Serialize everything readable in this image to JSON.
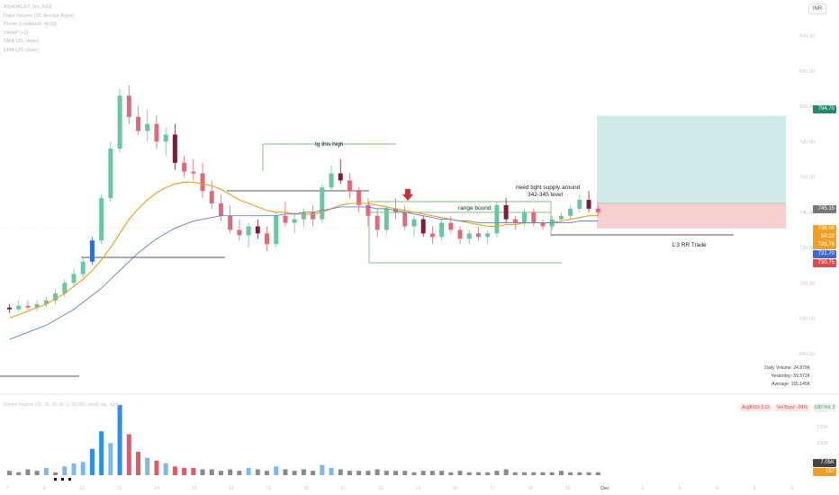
{
  "legend": {
    "symbol": "ASHOKLEY, 5m, NSE",
    "lines": [
      "Daily Volume (20, Anchor Right)",
      "Pivots (Lookback, 4x10)",
      "VWAP (+1)",
      "SMA (20, close)",
      "EMA (20, close)"
    ]
  },
  "currency": "INR",
  "volume_legend": "Simple Volume (20, 20, 20, 50, 0, 50,000, small, top, right)",
  "badges": {
    "b1": "AvgBVol: 0 Cr",
    "b2": "Vol Buzz: -84%",
    "b3": "U/D Vol: 2"
  },
  "volstats": {
    "daily": "Daily Volume: 24.879K",
    "yesterday": "Yesterday: 59.571K",
    "average": "Average: 155.145K"
  },
  "annotations": {
    "high": "tg this high",
    "supply1": "need tight supply around",
    "supply2": "342-345 level",
    "range": "range bound",
    "rr": "1:3  RR Trade"
  },
  "price_axis_ticks": [
    "840.00",
    "820.00",
    "800.00",
    "780.00",
    "760.00",
    "740.00",
    "720.00",
    "700.00",
    "680.00",
    "660.00"
  ],
  "price_tags": [
    {
      "label": "794.70",
      "color": "#1f8a70"
    },
    {
      "label": "745.15",
      "color": "#777777"
    },
    {
      "label": "736.00",
      "color": "#f0a020"
    },
    {
      "label": "50:22",
      "color": "#f0a020"
    },
    {
      "label": "735.76",
      "color": "#f0a020"
    },
    {
      "label": "731.70",
      "color": "#3a6ad0"
    },
    {
      "label": "730.75",
      "color": "#e04a4a"
    }
  ],
  "volume_tags": [
    {
      "label": "7.05K",
      "color": "#444444"
    },
    {
      "label": "157",
      "color": "#f0a020"
    }
  ],
  "x_ticks": [
    "7",
    "9",
    "12",
    "13",
    "14",
    "15",
    "16",
    "19",
    "20",
    "21",
    "22",
    "23",
    "26",
    "27",
    "28",
    "29",
    "Dec",
    "3",
    "4",
    "5",
    "6",
    "9"
  ],
  "chart_data": {
    "type": "candlestick",
    "ylim": [
      640,
      850
    ],
    "candles": [
      [
        686,
        688,
        683,
        685
      ],
      [
        685,
        690,
        684,
        687
      ],
      [
        687,
        690,
        685,
        686
      ],
      [
        686,
        690,
        684,
        688
      ],
      [
        688,
        692,
        686,
        690
      ],
      [
        690,
        696,
        688,
        694
      ],
      [
        694,
        702,
        692,
        700
      ],
      [
        700,
        708,
        698,
        705
      ],
      [
        705,
        715,
        703,
        712
      ],
      [
        712,
        726,
        710,
        724
      ],
      [
        724,
        750,
        722,
        748
      ],
      [
        748,
        780,
        746,
        776
      ],
      [
        776,
        810,
        774,
        806
      ],
      [
        806,
        812,
        790,
        794
      ],
      [
        794,
        800,
        784,
        786
      ],
      [
        786,
        798,
        780,
        790
      ],
      [
        790,
        795,
        776,
        780
      ],
      [
        780,
        788,
        772,
        784
      ],
      [
        784,
        790,
        764,
        768
      ],
      [
        768,
        772,
        760,
        763
      ],
      [
        763,
        770,
        758,
        762
      ],
      [
        762,
        768,
        748,
        752
      ],
      [
        752,
        758,
        742,
        745
      ],
      [
        745,
        750,
        735,
        738
      ],
      [
        738,
        744,
        728,
        730
      ],
      [
        730,
        736,
        724,
        727
      ],
      [
        727,
        734,
        720,
        732
      ],
      [
        732,
        736,
        725,
        728
      ],
      [
        728,
        732,
        718,
        722
      ],
      [
        722,
        740,
        720,
        738
      ],
      [
        738,
        746,
        732,
        734
      ],
      [
        734,
        740,
        728,
        736
      ],
      [
        736,
        742,
        732,
        740
      ],
      [
        740,
        744,
        732,
        736
      ],
      [
        736,
        756,
        734,
        754
      ],
      [
        754,
        766,
        752,
        762
      ],
      [
        762,
        770,
        756,
        758
      ],
      [
        758,
        762,
        748,
        752
      ],
      [
        752,
        754,
        740,
        744
      ],
      [
        744,
        748,
        732,
        738
      ],
      [
        738,
        742,
        726,
        730
      ],
      [
        730,
        744,
        728,
        742
      ],
      [
        742,
        748,
        736,
        740
      ],
      [
        740,
        744,
        730,
        732
      ],
      [
        732,
        738,
        726,
        736
      ],
      [
        736,
        738,
        726,
        728
      ],
      [
        728,
        732,
        722,
        726
      ],
      [
        726,
        736,
        724,
        734
      ],
      [
        734,
        738,
        728,
        730
      ],
      [
        730,
        732,
        722,
        725
      ],
      [
        725,
        730,
        722,
        728
      ],
      [
        728,
        732,
        724,
        726
      ],
      [
        726,
        730,
        722,
        728
      ],
      [
        728,
        746,
        726,
        744
      ],
      [
        744,
        748,
        734,
        736
      ],
      [
        736,
        738,
        730,
        734
      ],
      [
        734,
        742,
        732,
        740
      ],
      [
        740,
        742,
        732,
        734
      ],
      [
        734,
        736,
        730,
        732
      ],
      [
        732,
        738,
        730,
        736
      ],
      [
        736,
        740,
        734,
        738
      ],
      [
        738,
        744,
        736,
        742
      ],
      [
        742,
        750,
        740,
        747
      ],
      [
        747,
        752,
        740,
        742
      ],
      [
        742,
        744,
        738,
        740
      ]
    ],
    "ema": [
      680,
      682,
      684,
      686,
      688,
      691,
      694,
      698,
      702,
      707,
      713,
      720,
      728,
      736,
      742,
      747,
      751,
      754,
      756,
      757,
      757,
      756,
      755,
      753,
      750,
      747,
      745,
      743,
      741,
      740,
      740,
      739,
      739,
      739,
      740,
      742,
      744,
      745,
      745,
      745,
      744,
      743,
      742,
      741,
      740,
      739,
      738,
      737,
      736,
      735,
      734,
      733,
      732,
      732,
      733,
      733,
      734,
      734,
      734,
      734,
      735,
      736,
      737,
      738,
      738
    ],
    "sma": [
      668,
      670,
      672,
      674,
      676,
      679,
      682,
      685,
      689,
      693,
      697,
      702,
      707,
      712,
      717,
      721,
      725,
      728,
      731,
      733,
      735,
      736,
      737,
      738,
      738,
      738,
      738,
      738,
      738,
      738,
      739,
      739,
      740,
      740,
      741,
      742,
      743,
      743,
      743,
      743,
      742,
      742,
      741,
      740,
      739,
      738,
      737,
      736,
      736,
      735,
      735,
      734,
      734,
      734,
      734,
      734,
      734,
      734,
      734,
      734,
      734,
      734,
      735,
      735,
      735
    ],
    "volumes": [
      3,
      2,
      4,
      3,
      5,
      2,
      6,
      8,
      9,
      18,
      30,
      22,
      48,
      28,
      16,
      12,
      10,
      8,
      6,
      5,
      5,
      4,
      4,
      3,
      4,
      3,
      5,
      4,
      3,
      6,
      4,
      3,
      4,
      3,
      7,
      5,
      4,
      3,
      3,
      3,
      4,
      3,
      3,
      3,
      2,
      3,
      3,
      3,
      2,
      3,
      2,
      2,
      2,
      3,
      4,
      2,
      2,
      2,
      2,
      2,
      3,
      2,
      2,
      2,
      2
    ],
    "trade_box": {
      "entry": 745,
      "target": 794.7,
      "stop": 730.75
    },
    "ratio": "1:3"
  }
}
